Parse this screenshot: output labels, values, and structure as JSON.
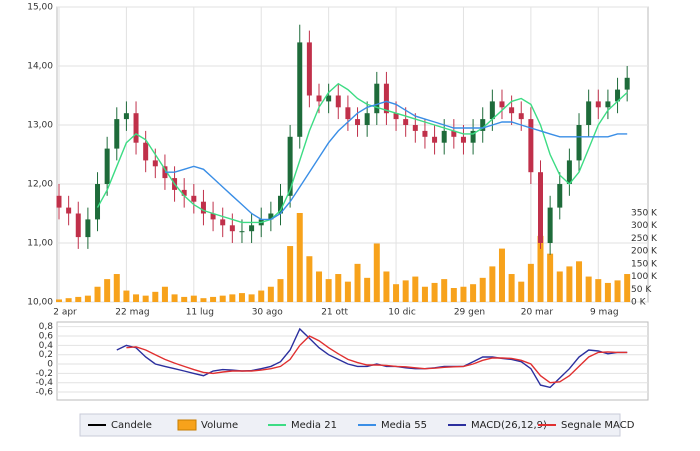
{
  "chart_data": [
    {
      "type": "candlestick",
      "categories": [
        "2 apr",
        null,
        null,
        null,
        null,
        null,
        null,
        "22 mag",
        null,
        null,
        null,
        null,
        null,
        null,
        "11 lug",
        null,
        null,
        null,
        null,
        null,
        null,
        "30 ago",
        null,
        null,
        null,
        null,
        null,
        null,
        "21 ott",
        null,
        null,
        null,
        null,
        null,
        null,
        "10 dic",
        null,
        null,
        null,
        null,
        null,
        null,
        "29 gen",
        null,
        null,
        null,
        null,
        null,
        null,
        "20 mar",
        null,
        null,
        null,
        null,
        null,
        null,
        "9 mag",
        null,
        null,
        null
      ],
      "ylim": [
        10,
        15
      ],
      "yticks": [
        {
          "value": 10,
          "label": "10,00"
        },
        {
          "value": 11,
          "label": "11,00"
        },
        {
          "value": 12,
          "label": "12,00"
        },
        {
          "value": 13,
          "label": "13,00"
        },
        {
          "value": 14,
          "label": "14,00"
        },
        {
          "value": 15,
          "label": "15,00"
        }
      ],
      "y2lim": [
        0,
        1160
      ],
      "y2ticks": [
        {
          "value": 0,
          "label": "0 K"
        },
        {
          "value": 50,
          "label": "50 K"
        },
        {
          "value": 100,
          "label": "100 K"
        },
        {
          "value": 150,
          "label": "150 K"
        },
        {
          "value": 200,
          "label": "200 K"
        },
        {
          "value": 250,
          "label": "250 K"
        },
        {
          "value": 300,
          "label": "300 K"
        },
        {
          "value": 350,
          "label": "350 K"
        }
      ],
      "grid": true,
      "series": [
        {
          "name": "Candele",
          "type": "candlestick",
          "color": "#000000",
          "up_color": "#1e6b3a",
          "down_color": "#c0304a",
          "open": [
            11.8,
            11.6,
            11.5,
            11.1,
            11.4,
            12.0,
            12.6,
            13.1,
            13.2,
            12.7,
            12.4,
            12.3,
            12.1,
            11.9,
            11.8,
            11.7,
            11.5,
            11.4,
            11.3,
            11.2,
            11.2,
            11.3,
            11.4,
            11.5,
            11.8,
            12.8,
            14.4,
            13.5,
            13.4,
            13.5,
            13.3,
            13.1,
            13.0,
            13.2,
            13.7,
            13.2,
            13.1,
            13.0,
            12.9,
            12.8,
            12.7,
            12.9,
            12.8,
            12.7,
            12.9,
            13.1,
            13.4,
            13.3,
            13.2,
            13.1,
            12.2,
            11.0,
            11.6,
            12.0,
            12.4,
            13.0,
            13.4,
            13.3,
            13.4,
            13.6
          ],
          "high": [
            12.0,
            11.8,
            11.7,
            11.6,
            12.2,
            12.8,
            13.3,
            13.4,
            13.4,
            12.9,
            12.6,
            12.5,
            12.3,
            12.1,
            12.0,
            11.9,
            11.7,
            11.6,
            11.5,
            11.4,
            11.5,
            11.6,
            11.7,
            12.0,
            13.0,
            14.7,
            14.6,
            13.7,
            13.7,
            13.7,
            13.5,
            13.3,
            13.4,
            13.9,
            13.9,
            13.4,
            13.3,
            13.2,
            13.1,
            13.0,
            13.1,
            13.1,
            13.0,
            13.1,
            13.3,
            13.6,
            13.6,
            13.5,
            13.4,
            13.3,
            12.4,
            11.8,
            12.2,
            12.6,
            13.2,
            13.6,
            13.6,
            13.6,
            13.8,
            14.0
          ],
          "low": [
            11.4,
            11.3,
            10.9,
            10.9,
            11.2,
            11.8,
            12.4,
            12.9,
            12.5,
            12.2,
            12.1,
            11.9,
            11.7,
            11.6,
            11.5,
            11.3,
            11.2,
            11.1,
            11.0,
            11.0,
            11.0,
            11.1,
            11.2,
            11.3,
            11.6,
            12.6,
            13.3,
            13.2,
            13.2,
            13.1,
            12.9,
            12.8,
            12.8,
            13.0,
            13.0,
            12.9,
            12.8,
            12.7,
            12.6,
            12.5,
            12.5,
            12.6,
            12.5,
            12.5,
            12.7,
            12.9,
            13.1,
            13.0,
            12.9,
            12.0,
            10.9,
            10.8,
            11.4,
            11.8,
            12.2,
            12.8,
            13.1,
            13.1,
            13.2,
            13.4
          ],
          "close": [
            11.6,
            11.5,
            11.1,
            11.4,
            12.0,
            12.6,
            13.1,
            13.2,
            12.7,
            12.4,
            12.3,
            12.1,
            11.9,
            11.8,
            11.7,
            11.5,
            11.4,
            11.3,
            11.2,
            11.2,
            11.3,
            11.4,
            11.5,
            11.8,
            12.8,
            14.4,
            13.5,
            13.4,
            13.5,
            13.3,
            13.1,
            13.0,
            13.2,
            13.7,
            13.2,
            13.1,
            13.0,
            12.9,
            12.8,
            12.7,
            12.9,
            12.8,
            12.7,
            12.9,
            13.1,
            13.4,
            13.3,
            13.2,
            13.1,
            12.2,
            11.0,
            11.6,
            12.0,
            12.4,
            13.0,
            13.4,
            13.3,
            13.4,
            13.6,
            13.8
          ]
        },
        {
          "name": "Volume",
          "type": "bar",
          "axis": "y2",
          "color": "#f7a21b",
          "values": [
            10,
            15,
            20,
            25,
            60,
            90,
            110,
            45,
            30,
            25,
            40,
            60,
            30,
            20,
            25,
            15,
            20,
            25,
            30,
            35,
            30,
            45,
            60,
            90,
            220,
            350,
            180,
            120,
            90,
            110,
            80,
            150,
            95,
            230,
            120,
            70,
            85,
            100,
            60,
            75,
            90,
            55,
            60,
            70,
            95,
            140,
            210,
            110,
            80,
            150,
            260,
            190,
            120,
            140,
            160,
            100,
            90,
            75,
            85,
            110
          ]
        },
        {
          "name": "Media 21",
          "type": "line",
          "color": "#3ddc84",
          "values": [
            null,
            null,
            null,
            null,
            11.6,
            11.9,
            12.3,
            12.7,
            12.85,
            12.75,
            12.5,
            12.25,
            12.0,
            11.8,
            11.65,
            11.55,
            11.5,
            11.45,
            11.4,
            11.35,
            11.35,
            11.35,
            11.4,
            11.55,
            11.9,
            12.4,
            12.9,
            13.3,
            13.55,
            13.7,
            13.6,
            13.45,
            13.35,
            13.3,
            13.25,
            13.2,
            13.15,
            13.1,
            13.05,
            13.0,
            12.95,
            12.9,
            12.85,
            12.85,
            12.95,
            13.1,
            13.25,
            13.4,
            13.45,
            13.35,
            13.0,
            12.5,
            12.15,
            12.0,
            12.2,
            12.6,
            13.0,
            13.25,
            13.4,
            13.55
          ]
        },
        {
          "name": "Media 55",
          "type": "line",
          "color": "#3a8ee6",
          "values": [
            null,
            null,
            null,
            null,
            null,
            null,
            null,
            null,
            null,
            null,
            null,
            12.2,
            12.2,
            12.25,
            12.3,
            12.25,
            12.1,
            11.95,
            11.8,
            11.65,
            11.5,
            11.4,
            11.4,
            11.5,
            11.7,
            11.95,
            12.2,
            12.45,
            12.7,
            12.9,
            13.05,
            13.2,
            13.3,
            13.35,
            13.4,
            13.35,
            13.25,
            13.15,
            13.1,
            13.05,
            13.0,
            12.95,
            12.95,
            12.95,
            12.95,
            13.0,
            13.05,
            13.05,
            13.0,
            12.95,
            12.9,
            12.85,
            12.8,
            12.8,
            12.8,
            12.8,
            12.8,
            12.8,
            12.85,
            12.85
          ]
        }
      ]
    },
    {
      "type": "line",
      "ylim": [
        -0.77,
        0.9
      ],
      "yticks": [
        {
          "value": 0.8,
          "label": "0,8"
        },
        {
          "value": 0.6,
          "label": "0,6"
        },
        {
          "value": 0.4,
          "label": "0,4"
        },
        {
          "value": 0.2,
          "label": "0,2"
        },
        0,
        {
          "value": -0.2,
          "label": "-0,2"
        },
        {
          "value": -0.4,
          "label": "-0,4"
        },
        {
          "value": -0.6,
          "label": "-0,6"
        }
      ],
      "grid": true,
      "series": [
        {
          "name": "MACD(26,12,9)",
          "type": "line",
          "color": "#2b2f9e",
          "values": [
            null,
            null,
            null,
            null,
            null,
            null,
            0.3,
            0.4,
            0.35,
            0.15,
            0.0,
            -0.05,
            -0.1,
            -0.15,
            -0.2,
            -0.25,
            -0.15,
            -0.12,
            -0.13,
            -0.15,
            -0.14,
            -0.1,
            -0.05,
            0.05,
            0.3,
            0.75,
            0.55,
            0.35,
            0.2,
            0.1,
            0.0,
            -0.05,
            -0.05,
            0.0,
            -0.05,
            -0.05,
            -0.08,
            -0.1,
            -0.1,
            -0.08,
            -0.05,
            -0.05,
            -0.05,
            0.05,
            0.15,
            0.15,
            0.12,
            0.1,
            0.05,
            -0.1,
            -0.45,
            -0.5,
            -0.3,
            -0.1,
            0.15,
            0.3,
            0.28,
            0.22,
            0.25,
            0.25
          ]
        },
        {
          "name": "Segnale MACD",
          "type": "line",
          "color": "#e03030",
          "values": [
            null,
            null,
            null,
            null,
            null,
            null,
            null,
            0.35,
            0.37,
            0.3,
            0.2,
            0.1,
            0.02,
            -0.05,
            -0.12,
            -0.18,
            -0.2,
            -0.17,
            -0.15,
            -0.15,
            -0.15,
            -0.13,
            -0.1,
            -0.05,
            0.1,
            0.4,
            0.6,
            0.5,
            0.35,
            0.22,
            0.1,
            0.03,
            -0.02,
            -0.02,
            -0.03,
            -0.05,
            -0.06,
            -0.08,
            -0.1,
            -0.09,
            -0.07,
            -0.06,
            -0.05,
            0.0,
            0.08,
            0.13,
            0.13,
            0.12,
            0.08,
            0.0,
            -0.25,
            -0.4,
            -0.38,
            -0.25,
            -0.05,
            0.15,
            0.25,
            0.26,
            0.25,
            0.25
          ]
        }
      ]
    }
  ]
}
